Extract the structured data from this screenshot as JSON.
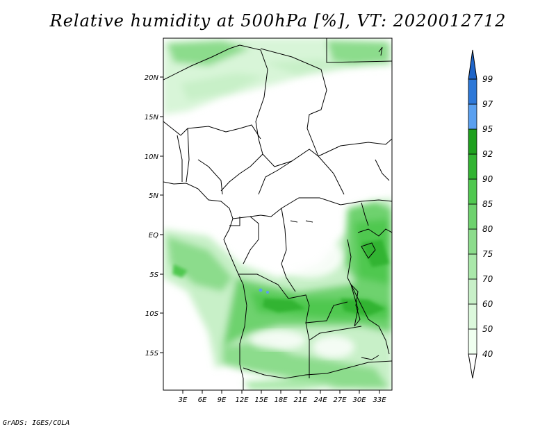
{
  "title": "Relative humidity at 500hPa [%], VT: 2020012712",
  "credit": "GrADS: IGES/COLA",
  "map": {
    "variable": "Relative humidity",
    "level": "500hPa",
    "units": "%",
    "valid_time": "2020012712",
    "lon_labels": [
      "3E",
      "6E",
      "9E",
      "12E",
      "15E",
      "18E",
      "21E",
      "24E",
      "27E",
      "30E",
      "33E"
    ],
    "lat_labels": [
      "20N",
      "15N",
      "10N",
      "5N",
      "EQ",
      "5S",
      "10S",
      "15S"
    ]
  },
  "colorbar": {
    "levels": [
      "40",
      "50",
      "60",
      "70",
      "75",
      "80",
      "85",
      "90",
      "92",
      "95",
      "97",
      "99"
    ],
    "colors": [
      "#f0fff0",
      "#dcf8dc",
      "#c8f0c8",
      "#aae8aa",
      "#8cdc8c",
      "#6ed26e",
      "#50c850",
      "#32b432",
      "#1ea01e",
      "#0a8c0a",
      "#5aa0f0",
      "#2d78d8",
      "#1e64c8"
    ]
  }
}
